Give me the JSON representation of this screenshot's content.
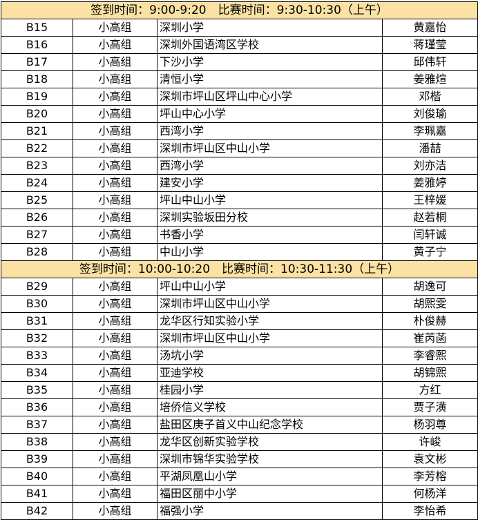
{
  "sections": [
    {
      "header": "签到时间：9:00-9:20　比赛时间：9:30-10:30（上午）",
      "rows": [
        [
          "B15",
          "小高组",
          "深圳小学",
          "黄嘉怡"
        ],
        [
          "B16",
          "小高组",
          "深圳外国语湾区学校",
          "蒋瑾莹"
        ],
        [
          "B17",
          "小高组",
          "下沙小学",
          "邱伟轩"
        ],
        [
          "B18",
          "小高组",
          "清恒小学",
          "姜雅煊"
        ],
        [
          "B19",
          "小高组",
          "深圳市坪山区坪山中心小学",
          "邓楷"
        ],
        [
          "B20",
          "小高组",
          "坪山中心小学",
          "刘俊瑜"
        ],
        [
          "B21",
          "小高组",
          "西湾小学",
          "李珮嘉"
        ],
        [
          "B22",
          "小高组",
          "深圳市坪山区中山小学",
          "潘喆"
        ],
        [
          "B23",
          "小高组",
          "西湾小学",
          "刘亦洁"
        ],
        [
          "B24",
          "小高组",
          "建安小学",
          "姜雅婷"
        ],
        [
          "B25",
          "小高组",
          "坪山中山小学",
          "王梓媛"
        ],
        [
          "B26",
          "小高组",
          "深圳实验坂田分校",
          "赵若桐"
        ],
        [
          "B27",
          "小高组",
          "书香小学",
          "闫轩诚"
        ],
        [
          "B28",
          "小高组",
          "中山小学",
          "黄子宁"
        ]
      ]
    },
    {
      "header": "签到时间：10:00-10:20　比赛时间：10:30-11:30（上午）",
      "rows": [
        [
          "B29",
          "小高组",
          "坪山中山小学",
          "胡逸可"
        ],
        [
          "B30",
          "小高组",
          "深圳市坪山区中山小学",
          "胡熙雯"
        ],
        [
          "B31",
          "小高组",
          "龙华区行知实验小学",
          "朴俊赫"
        ],
        [
          "B32",
          "小高组",
          "深圳市坪山区中山小学",
          "崔芮菡"
        ],
        [
          "B33",
          "小高组",
          "汤坑小学",
          "李睿熙"
        ],
        [
          "B34",
          "小高组",
          "亚迪学校",
          "胡锦熙"
        ],
        [
          "B35",
          "小高组",
          "桂园小学",
          "方红"
        ],
        [
          "B36",
          "小高组",
          "培侨信义学校",
          "贾子潢"
        ],
        [
          "B37",
          "小高组",
          "盐田区庚子首义中山纪念学校",
          "杨羽尊"
        ],
        [
          "B38",
          "小高组",
          "龙华区创新实验学校",
          "许峻"
        ],
        [
          "B39",
          "小高组",
          "深圳市锦华实验学校",
          "袁文彬"
        ],
        [
          "B40",
          "小高组",
          "平湖凤凰山小学",
          "李芳榕"
        ],
        [
          "B41",
          "小高组",
          "福田区丽中小学",
          "何杨洋"
        ],
        [
          "B42",
          "小高组",
          "福强小学",
          "李怡希"
        ]
      ]
    }
  ],
  "colors": {
    "section_header_bg": "#fbe2a4"
  }
}
